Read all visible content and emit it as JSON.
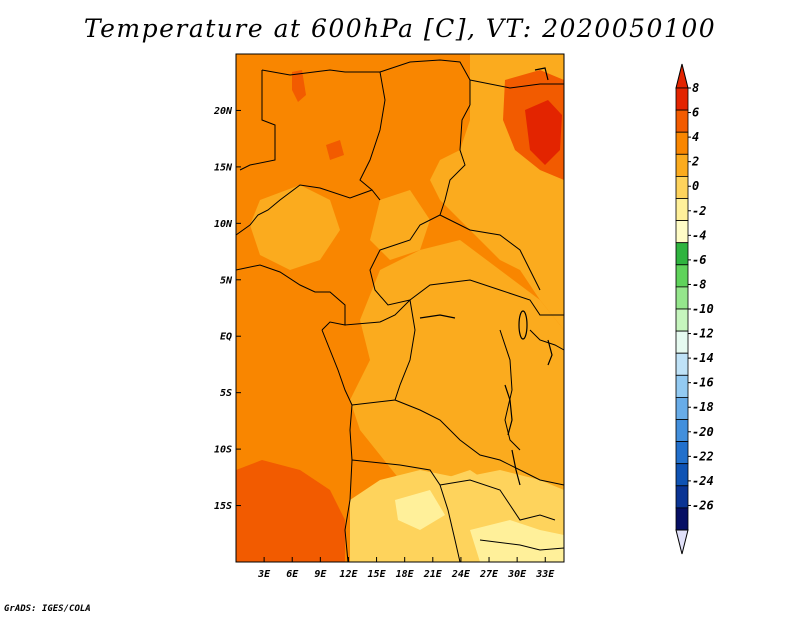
{
  "title": "Temperature at 600hPa [C], VT: 2020050100",
  "credit": "GrADS: IGES/COLA",
  "map": {
    "lon_range": [
      0,
      35
    ],
    "lat_range": [
      -20,
      25
    ],
    "lon_ticks": [
      "3E",
      "6E",
      "9E",
      "12E",
      "15E",
      "18E",
      "21E",
      "24E",
      "27E",
      "30E",
      "33E"
    ],
    "lat_ticks": [
      "20N",
      "15N",
      "10N",
      "5N",
      "EQ",
      "5S",
      "10S",
      "15S"
    ]
  },
  "colorbar": {
    "labels": [
      "8",
      "6",
      "4",
      "2",
      "0",
      "-2",
      "-4",
      "-6",
      "-8",
      "-10",
      "-12",
      "-14",
      "-16",
      "-18",
      "-20",
      "-22",
      "-24",
      "-26"
    ],
    "colors": [
      "#e32400",
      "#f25b00",
      "#f98600",
      "#fbab1e",
      "#fed35c",
      "#fff09a",
      "#fffcc6",
      "#2fb43f",
      "#5fd35b",
      "#95e68c",
      "#c6f5be",
      "#e6faf0",
      "#bfe2f7",
      "#93caf2",
      "#68ace8",
      "#428fdc",
      "#2270cc",
      "#0f53b4",
      "#0a3494",
      "#060f64"
    ],
    "top_arrow_color": "#e32400",
    "bottom_arrow_color": "#e0e0f8"
  }
}
